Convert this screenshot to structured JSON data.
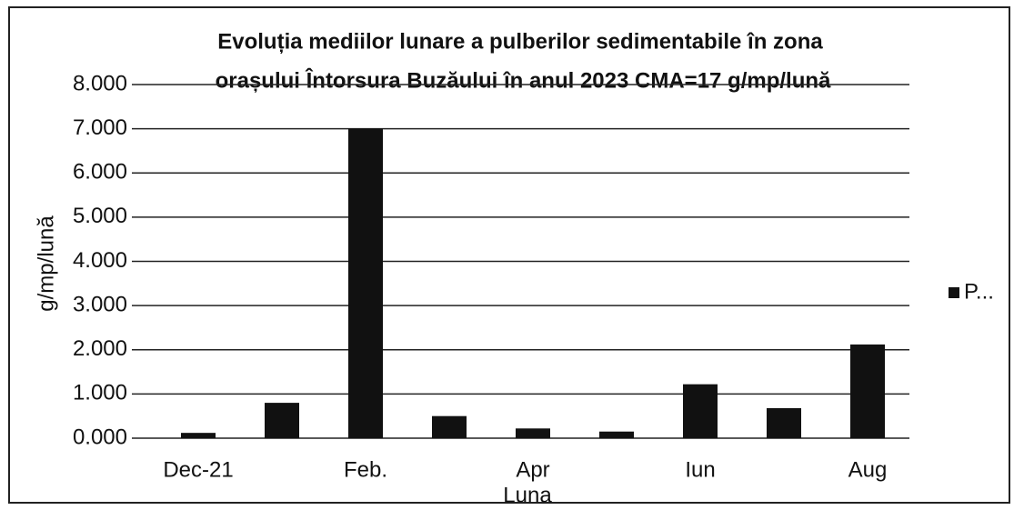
{
  "chart_data": {
    "type": "bar",
    "title": [
      "Evoluția mediilor lunare a pulberilor  sedimentabile în zona",
      "orașului  Întorsura Buzăului în anul 2023  CMA=17 g/mp/lună"
    ],
    "y_label": "g/mp/lună",
    "x_label": "Luna",
    "categories": [
      "Dec-21",
      null,
      "Feb.",
      null,
      "Apr",
      null,
      "Iun",
      null,
      "Aug"
    ],
    "series": [
      {
        "name": "P...",
        "color": "#111111",
        "values": [
          0.12,
          0.8,
          7.0,
          0.5,
          0.22,
          0.15,
          1.22,
          0.68,
          2.12
        ]
      }
    ],
    "ylim": [
      0,
      8
    ],
    "yticks": [
      {
        "value": 0,
        "label": "0.000"
      },
      {
        "value": 1,
        "label": "1.000"
      },
      {
        "value": 2,
        "label": "2.000"
      },
      {
        "value": 3,
        "label": "3.000"
      },
      {
        "value": 4,
        "label": "4.000"
      },
      {
        "value": 5,
        "label": "5.000"
      },
      {
        "value": 6,
        "label": "6.000"
      },
      {
        "value": 7,
        "label": "7.000"
      },
      {
        "value": 8,
        "label": "8.000"
      }
    ],
    "grid": true,
    "legend": "right"
  }
}
